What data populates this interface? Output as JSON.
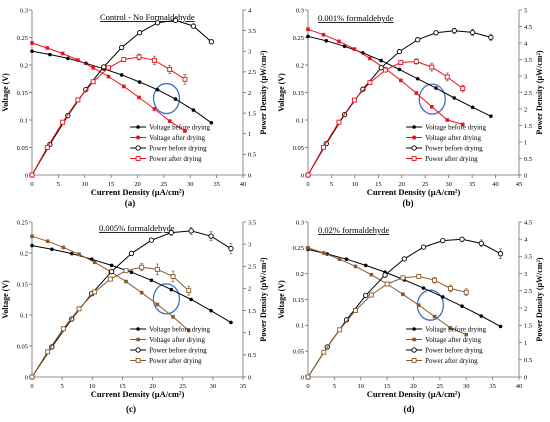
{
  "chart_data": [
    {
      "type": "line",
      "panel_label": "(a)",
      "title": "Control - No Formaldehyde",
      "title_underline": true,
      "xlabel": "Current Density (μA/cm²)",
      "ylabel": "Voltage (V)",
      "y2label": "Power Density (μW/cm²)",
      "xlim": [
        0,
        40
      ],
      "xticks": [
        0,
        5,
        10,
        15,
        20,
        25,
        30,
        35,
        40
      ],
      "ylim": [
        0,
        0.3
      ],
      "yticks": [
        0,
        0.05,
        0.1,
        0.15,
        0.2,
        0.25,
        0.3
      ],
      "y2lim": [
        0,
        4
      ],
      "y2ticks": [
        0,
        0.5,
        1,
        1.5,
        2,
        2.5,
        3,
        3.5,
        4
      ],
      "legend_position": "bottom-right",
      "annotation": "blue ellipse around the voltage curves",
      "ellipse": {
        "x": 25.5,
        "y": 0.139
      },
      "series": [
        {
          "name": "Voltage before drying",
          "axis": "left",
          "style": "before",
          "kind": "voltage",
          "x": [
            0,
            3.4,
            6.8,
            10.2,
            13.6,
            17,
            20.4,
            23.8,
            27.2,
            30.6,
            34
          ],
          "y": [
            0.225,
            0.219,
            0.212,
            0.203,
            0.193,
            0.182,
            0.169,
            0.155,
            0.138,
            0.118,
            0.095
          ]
        },
        {
          "name": "Voltage after drying",
          "axis": "left",
          "style": "after",
          "kind": "voltage",
          "x": [
            0,
            2.9,
            5.8,
            8.7,
            11.6,
            14.5,
            17.4,
            20.3,
            23.2,
            26.1,
            29
          ],
          "y": [
            0.24,
            0.231,
            0.221,
            0.209,
            0.195,
            0.179,
            0.161,
            0.141,
            0.12,
            0.098,
            0.08
          ]
        },
        {
          "name": "Power before drying",
          "axis": "right",
          "style": "before",
          "kind": "power",
          "x": [
            0,
            3.4,
            6.8,
            10.2,
            13.6,
            17,
            20.4,
            23.8,
            27.2,
            30.6,
            34
          ],
          "y": [
            0,
            0.74,
            1.44,
            2.07,
            2.62,
            3.09,
            3.45,
            3.69,
            3.75,
            3.61,
            3.23
          ],
          "error": [
            0,
            0,
            0,
            0,
            0,
            0,
            0,
            0.04,
            0.05,
            0.05,
            0.05
          ]
        },
        {
          "name": "Power after drying",
          "axis": "right",
          "style": "after",
          "kind": "power",
          "x": [
            0,
            2.9,
            5.8,
            8.7,
            11.6,
            14.5,
            17.4,
            20.3,
            23.2,
            26.1,
            29
          ],
          "y": [
            0,
            0.67,
            1.28,
            1.82,
            2.26,
            2.6,
            2.8,
            2.86,
            2.78,
            2.56,
            2.32
          ],
          "error": [
            0,
            0,
            0,
            0,
            0,
            0,
            0,
            0.07,
            0.1,
            0.1,
            0.12
          ]
        }
      ]
    },
    {
      "type": "line",
      "panel_label": "(b)",
      "title": "0.001% formaldehyde",
      "title_underline": true,
      "xlabel": "Current Density (μA/cm²)",
      "ylabel": "Voltage (V)",
      "y2label": "Power Density (μW/cm²)",
      "xlim": [
        0,
        45
      ],
      "xticks": [
        0,
        5,
        10,
        15,
        20,
        25,
        30,
        35,
        40,
        45
      ],
      "ylim": [
        0,
        0.3
      ],
      "yticks": [
        0,
        0.05,
        0.1,
        0.15,
        0.2,
        0.25,
        0.3
      ],
      "y2lim": [
        0,
        5
      ],
      "y2ticks": [
        0,
        0.5,
        1,
        1.5,
        2,
        2.5,
        3,
        3.5,
        4,
        4.5,
        5
      ],
      "legend_position": "bottom-right",
      "annotation": "blue ellipse around the voltage curves",
      "ellipse": {
        "x": 26.5,
        "y": 0.138
      },
      "series": [
        {
          "name": "Voltage before drying",
          "axis": "left",
          "style": "before",
          "kind": "voltage",
          "x": [
            0,
            3.9,
            7.8,
            11.7,
            15.6,
            19.5,
            23.4,
            27.3,
            31.2,
            35.1,
            39
          ],
          "y": [
            0.252,
            0.244,
            0.234,
            0.222,
            0.208,
            0.192,
            0.175,
            0.158,
            0.14,
            0.123,
            0.107
          ]
        },
        {
          "name": "Voltage after drying",
          "axis": "left",
          "style": "after",
          "kind": "voltage",
          "x": [
            0,
            3.3,
            6.6,
            9.9,
            13.2,
            16.5,
            19.8,
            23.1,
            26.4,
            29.7,
            33
          ],
          "y": [
            0.265,
            0.255,
            0.243,
            0.229,
            0.212,
            0.193,
            0.172,
            0.149,
            0.124,
            0.1,
            0.092
          ]
        },
        {
          "name": "Power before drying",
          "axis": "right",
          "style": "before",
          "kind": "power",
          "x": [
            0,
            3.9,
            7.8,
            11.7,
            15.6,
            19.5,
            23.4,
            27.3,
            31.2,
            35.1,
            39
          ],
          "y": [
            0,
            0.95,
            1.83,
            2.6,
            3.25,
            3.74,
            4.1,
            4.31,
            4.37,
            4.32,
            4.17
          ],
          "error": [
            0,
            0,
            0,
            0,
            0,
            0.05,
            0.06,
            0.06,
            0.08,
            0.1,
            0.1
          ]
        },
        {
          "name": "Power after drying",
          "axis": "right",
          "style": "after",
          "kind": "power",
          "x": [
            0,
            3.3,
            6.6,
            9.9,
            13.2,
            16.5,
            19.8,
            23.1,
            26.4,
            29.7,
            33
          ],
          "y": [
            0,
            0.84,
            1.6,
            2.27,
            2.8,
            3.18,
            3.41,
            3.44,
            3.27,
            2.97,
            2.62
          ],
          "error": [
            0,
            0,
            0,
            0,
            0,
            0,
            0,
            0.08,
            0.12,
            0.12,
            0.1
          ]
        }
      ]
    },
    {
      "type": "line",
      "panel_label": "(c)",
      "title": "0.005% formaldehyde",
      "title_underline": true,
      "xlabel": "Current Density (μA/cm²)",
      "ylabel": "Voltage (V)",
      "y2label": "Power Density (μW/cm²)",
      "xlim": [
        0,
        35
      ],
      "xticks": [
        0,
        5,
        10,
        15,
        20,
        25,
        30,
        35
      ],
      "ylim": [
        0,
        0.25
      ],
      "yticks": [
        0,
        0.05,
        0.1,
        0.15,
        0.2,
        0.25
      ],
      "y2lim": [
        0,
        3.5
      ],
      "y2ticks": [
        0,
        0.5,
        1,
        1.5,
        2,
        2.5,
        3,
        3.5
      ],
      "legend_position": "bottom-right",
      "annotation": "blue ellipse around the voltage curves",
      "ellipse": {
        "x": 22.3,
        "y": 0.126
      },
      "series": [
        {
          "name": "Voltage before drying",
          "axis": "left",
          "style": "before",
          "kind": "voltage",
          "x": [
            0,
            3.3,
            6.6,
            9.9,
            13.2,
            16.5,
            19.8,
            23.1,
            26.4,
            29.7,
            33
          ],
          "y": [
            0.212,
            0.206,
            0.199,
            0.19,
            0.18,
            0.169,
            0.156,
            0.141,
            0.125,
            0.107,
            0.088
          ]
        },
        {
          "name": "Voltage after drying",
          "axis": "left",
          "style": "after",
          "kind": "voltage",
          "x": [
            0,
            2.6,
            5.2,
            7.8,
            10.4,
            13,
            15.6,
            18.2,
            20.8,
            23.4,
            26
          ],
          "y": [
            0.227,
            0.219,
            0.209,
            0.198,
            0.185,
            0.17,
            0.154,
            0.136,
            0.117,
            0.097,
            0.075
          ]
        },
        {
          "name": "Power before drying",
          "axis": "right",
          "style": "before",
          "kind": "power",
          "x": [
            0,
            3.3,
            6.6,
            9.9,
            13.2,
            16.5,
            19.8,
            23.1,
            26.4,
            29.7,
            33
          ],
          "y": [
            0,
            0.68,
            1.31,
            1.88,
            2.38,
            2.79,
            3.09,
            3.26,
            3.3,
            3.18,
            2.9
          ],
          "error": [
            0,
            0,
            0,
            0,
            0,
            0,
            0,
            0.06,
            0.08,
            0.1,
            0.12
          ]
        },
        {
          "name": "Power after drying",
          "axis": "right",
          "style": "after",
          "kind": "power",
          "x": [
            0,
            2.6,
            5.2,
            7.8,
            10.4,
            13,
            15.6,
            18.2,
            20.8,
            23.4,
            26
          ],
          "y": [
            0,
            0.57,
            1.09,
            1.54,
            1.92,
            2.21,
            2.4,
            2.48,
            2.43,
            2.27,
            1.95
          ],
          "error": [
            0,
            0,
            0,
            0,
            0,
            0,
            0,
            0.08,
            0.12,
            0.12,
            0.1
          ]
        }
      ]
    },
    {
      "type": "line",
      "panel_label": "(d)",
      "title": "0.02% formaldehyde",
      "title_underline": true,
      "xlabel": "Current Density (μA/cm²)",
      "ylabel": "Voltage (V)",
      "y2label": "Power Density (μW/cm²)",
      "xlim": [
        0,
        40
      ],
      "xticks": [
        0,
        5,
        10,
        15,
        20,
        25,
        30,
        35,
        40
      ],
      "ylim": [
        0,
        0.3
      ],
      "yticks": [
        0,
        0.05,
        0.1,
        0.15,
        0.2,
        0.25,
        0.3
      ],
      "y2lim": [
        0,
        4.5
      ],
      "y2ticks": [
        0,
        0.5,
        1,
        1.5,
        2,
        2.5,
        3,
        3.5,
        4,
        4.5
      ],
      "legend_position": "bottom-right",
      "annotation": "blue ellipse around the voltage curves",
      "ellipse": {
        "x": 23.2,
        "y": 0.139
      },
      "series": [
        {
          "name": "Voltage before drying",
          "axis": "left",
          "style": "before",
          "kind": "voltage",
          "x": [
            0,
            3.65,
            7.3,
            10.95,
            14.6,
            18.25,
            21.9,
            25.55,
            29.2,
            32.85,
            36.5
          ],
          "y": [
            0.247,
            0.238,
            0.228,
            0.216,
            0.203,
            0.188,
            0.172,
            0.155,
            0.137,
            0.118,
            0.098
          ]
        },
        {
          "name": "Voltage after drying",
          "axis": "left",
          "style": "after",
          "kind": "voltage",
          "x": [
            0,
            3,
            6,
            9,
            12,
            15,
            18,
            21,
            24,
            27,
            30
          ],
          "y": [
            0.25,
            0.24,
            0.228,
            0.214,
            0.198,
            0.18,
            0.16,
            0.139,
            0.117,
            0.095,
            0.082
          ]
        },
        {
          "name": "Power before drying",
          "axis": "right",
          "style": "before",
          "kind": "power",
          "x": [
            0,
            3.65,
            7.3,
            10.95,
            14.6,
            18.25,
            21.9,
            25.55,
            29.2,
            32.85,
            36.5
          ],
          "y": [
            0,
            0.87,
            1.66,
            2.37,
            2.96,
            3.43,
            3.77,
            3.96,
            4.0,
            3.88,
            3.58
          ],
          "error": [
            0,
            0,
            0,
            0,
            0,
            0,
            0,
            0.05,
            0.06,
            0.1,
            0.14
          ]
        },
        {
          "name": "Power after drying",
          "axis": "right",
          "style": "after",
          "kind": "power",
          "x": [
            0,
            3,
            6,
            9,
            12,
            15,
            18,
            21,
            24,
            27,
            30
          ],
          "y": [
            0,
            0.72,
            1.37,
            1.93,
            2.38,
            2.7,
            2.88,
            2.92,
            2.81,
            2.57,
            2.46
          ],
          "error": [
            0,
            0,
            0,
            0,
            0,
            0,
            0,
            0,
            0.08,
            0.1,
            0.1
          ]
        }
      ]
    }
  ],
  "colors": {
    "before": "#000000",
    "after_panels_ab": "#e8141b",
    "after_panels_cd": "#8b5a2b",
    "ellipse": "#3a6fc7",
    "axis": "#6e6e6e",
    "error_bar": "#666666"
  }
}
